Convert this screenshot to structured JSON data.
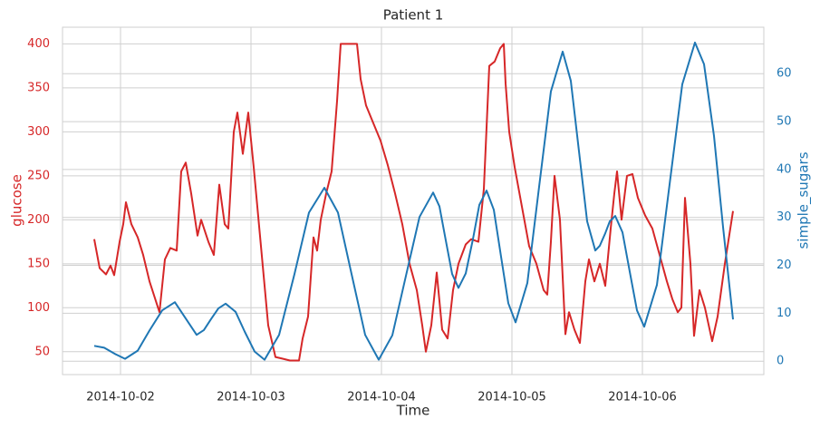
{
  "chart_data": {
    "type": "line",
    "title": "Patient 1",
    "xlabel": "Time",
    "grid": true,
    "xlim": [
      "2014-10-01 13:20",
      "2014-10-06 22:20"
    ],
    "xticks": [
      "2014-10-02",
      "2014-10-03",
      "2014-10-04",
      "2014-10-05",
      "2014-10-06"
    ],
    "ylim": [
      24,
      419
    ],
    "yticks": [
      50,
      100,
      150,
      200,
      250,
      300,
      350,
      400
    ],
    "y2lim": [
      -2.8,
      69.7
    ],
    "y2ticks": [
      0,
      10,
      20,
      30,
      40,
      50,
      60
    ],
    "series": [
      {
        "name": "glucose",
        "color": "#d62728",
        "x": [
          "2014-10-01 19:10",
          "2014-10-01 20:10",
          "2014-10-01 21:20",
          "2014-10-01 22:10",
          "2014-10-01 22:50",
          "2014-10-01 23:50",
          "2014-10-02 00:30",
          "2014-10-02 01:00",
          "2014-10-02 02:00",
          "2014-10-02 03:10",
          "2014-10-02 04:10",
          "2014-10-02 05:20",
          "2014-10-02 07:10",
          "2014-10-02 08:10",
          "2014-10-02 09:10",
          "2014-10-02 10:20",
          "2014-10-02 11:10",
          "2014-10-02 12:00",
          "2014-10-02 13:00",
          "2014-10-02 14:10",
          "2014-10-02 14:50",
          "2014-10-02 16:10",
          "2014-10-02 17:10",
          "2014-10-02 18:10",
          "2014-10-02 19:10",
          "2014-10-02 19:50",
          "2014-10-02 20:50",
          "2014-10-02 21:30",
          "2014-10-02 22:30",
          "2014-10-02 23:30",
          "2014-10-03 00:30",
          "2014-10-03 01:50",
          "2014-10-03 03:10",
          "2014-10-03 04:30",
          "2014-10-03 05:50",
          "2014-10-03 07:10",
          "2014-10-03 08:50",
          "2014-10-03 09:30",
          "2014-10-03 10:30",
          "2014-10-03 11:30",
          "2014-10-03 12:10",
          "2014-10-03 12:50",
          "2014-10-03 13:50",
          "2014-10-03 14:50",
          "2014-10-03 15:50",
          "2014-10-03 16:30",
          "2014-10-03 19:30",
          "2014-10-03 20:10",
          "2014-10-03 21:10",
          "2014-10-03 22:30",
          "2014-10-03 23:50",
          "2014-10-04 01:10",
          "2014-10-04 02:30",
          "2014-10-04 03:50",
          "2014-10-04 05:10",
          "2014-10-04 06:30",
          "2014-10-04 07:30",
          "2014-10-04 08:10",
          "2014-10-04 09:10",
          "2014-10-04 10:10",
          "2014-10-04 11:10",
          "2014-10-04 12:10",
          "2014-10-04 13:10",
          "2014-10-04 14:10",
          "2014-10-04 15:30",
          "2014-10-04 16:30",
          "2014-10-04 17:50",
          "2014-10-04 18:50",
          "2014-10-04 19:50",
          "2014-10-04 20:50",
          "2014-10-04 21:50",
          "2014-10-04 22:30",
          "2014-10-04 22:50",
          "2014-10-04 23:30",
          "2014-10-05 00:30",
          "2014-10-05 01:50",
          "2014-10-05 03:10",
          "2014-10-05 04:30",
          "2014-10-05 05:50",
          "2014-10-05 06:30",
          "2014-10-05 07:10",
          "2014-10-05 07:50",
          "2014-10-05 08:50",
          "2014-10-05 09:50",
          "2014-10-05 10:30",
          "2014-10-05 11:30",
          "2014-10-05 12:30",
          "2014-10-05 13:30",
          "2014-10-05 14:10",
          "2014-10-05 15:10",
          "2014-10-05 16:10",
          "2014-10-05 17:10",
          "2014-10-05 18:10",
          "2014-10-05 18:50",
          "2014-10-05 19:20",
          "2014-10-05 20:10",
          "2014-10-05 21:10",
          "2014-10-05 22:10",
          "2014-10-05 23:10",
          "2014-10-06 00:30",
          "2014-10-06 01:50",
          "2014-10-06 03:10",
          "2014-10-06 04:30",
          "2014-10-06 05:30",
          "2014-10-06 06:30",
          "2014-10-06 07:10",
          "2014-10-06 07:50",
          "2014-10-06 08:50",
          "2014-10-06 09:30",
          "2014-10-06 10:30",
          "2014-10-06 11:30",
          "2014-10-06 12:50",
          "2014-10-06 13:50",
          "2014-10-06 15:10",
          "2014-10-06 16:10",
          "2014-10-06 16:40"
        ],
        "values": [
          178,
          145,
          138,
          148,
          137,
          175,
          195,
          220,
          195,
          180,
          160,
          130,
          95,
          155,
          168,
          165,
          255,
          265,
          230,
          182,
          200,
          175,
          160,
          240,
          195,
          190,
          300,
          322,
          275,
          322,
          260,
          170,
          80,
          44,
          42,
          40,
          40,
          65,
          90,
          180,
          165,
          200,
          230,
          255,
          335,
          400,
          400,
          360,
          330,
          310,
          290,
          262,
          230,
          195,
          150,
          120,
          80,
          50,
          80,
          140,
          75,
          65,
          120,
          150,
          172,
          178,
          175,
          235,
          375,
          380,
          395,
          400,
          355,
          300,
          260,
          215,
          170,
          150,
          120,
          115,
          175,
          250,
          200,
          70,
          95,
          75,
          60,
          130,
          155,
          130,
          150,
          125,
          190,
          230,
          255,
          200,
          250,
          252,
          225,
          205,
          190,
          160,
          130,
          110,
          95,
          100,
          225,
          150,
          68,
          120,
          100,
          62,
          90,
          150,
          190,
          210
        ]
      },
      {
        "name": "simple_sugars",
        "color": "#1f77b4",
        "axis": "y2",
        "x": [
          "2014-10-01 19:10",
          "2014-10-01 21:00",
          "2014-10-01 23:00",
          "2014-10-02 00:50",
          "2014-10-02 03:10",
          "2014-10-02 05:20",
          "2014-10-02 07:40",
          "2014-10-02 10:00",
          "2014-10-02 12:00",
          "2014-10-02 14:00",
          "2014-10-02 15:20",
          "2014-10-02 16:40",
          "2014-10-02 18:00",
          "2014-10-02 19:20",
          "2014-10-02 21:10",
          "2014-10-02 22:50",
          "2014-10-03 00:40",
          "2014-10-03 02:30",
          "2014-10-03 05:10",
          "2014-10-03 08:00",
          "2014-10-03 10:40",
          "2014-10-03 13:30",
          "2014-10-03 16:00",
          "2014-10-03 18:30",
          "2014-10-03 21:00",
          "2014-10-03 23:30",
          "2014-10-04 02:00",
          "2014-10-04 04:30",
          "2014-10-04 07:00",
          "2014-10-04 09:30",
          "2014-10-04 10:40",
          "2014-10-04 11:50",
          "2014-10-04 13:00",
          "2014-10-04 14:10",
          "2014-10-04 15:30",
          "2014-10-04 16:50",
          "2014-10-04 18:00",
          "2014-10-04 19:20",
          "2014-10-04 20:40",
          "2014-10-04 22:00",
          "2014-10-04 23:20",
          "2014-10-05 00:40",
          "2014-10-05 02:50",
          "2014-10-05 05:00",
          "2014-10-05 07:10",
          "2014-10-05 09:20",
          "2014-10-05 10:50",
          "2014-10-05 12:20",
          "2014-10-05 13:50",
          "2014-10-05 15:20",
          "2014-10-05 16:10",
          "2014-10-05 17:10",
          "2014-10-05 18:00",
          "2014-10-05 19:00",
          "2014-10-05 20:20",
          "2014-10-05 21:40",
          "2014-10-05 23:00",
          "2014-10-06 00:20",
          "2014-10-06 02:40",
          "2014-10-06 05:00",
          "2014-10-06 07:20",
          "2014-10-06 09:40",
          "2014-10-06 11:20",
          "2014-10-06 13:10",
          "2014-10-06 14:50",
          "2014-10-06 16:40"
        ],
        "values": [
          3.2,
          2.8,
          1.5,
          0.5,
          2.2,
          6.4,
          10.6,
          12.3,
          8.9,
          5.5,
          6.5,
          8.8,
          11.0,
          12.0,
          10.3,
          6.2,
          2.0,
          0.3,
          5.5,
          18.2,
          31.0,
          36.2,
          31.0,
          18.2,
          5.5,
          0.3,
          5.4,
          17.8,
          30.1,
          35.2,
          32.3,
          25.2,
          18.2,
          15.3,
          18.3,
          25.5,
          32.6,
          35.6,
          31.6,
          21.8,
          12.1,
          8.1,
          16.3,
          36.4,
          56.3,
          64.6,
          58.5,
          43.8,
          29.2,
          23.1,
          24.1,
          26.7,
          29.2,
          30.3,
          26.9,
          18.7,
          10.6,
          7.2,
          15.9,
          36.9,
          57.8,
          66.5,
          62,
          47,
          28,
          8.7
        ]
      }
    ]
  }
}
